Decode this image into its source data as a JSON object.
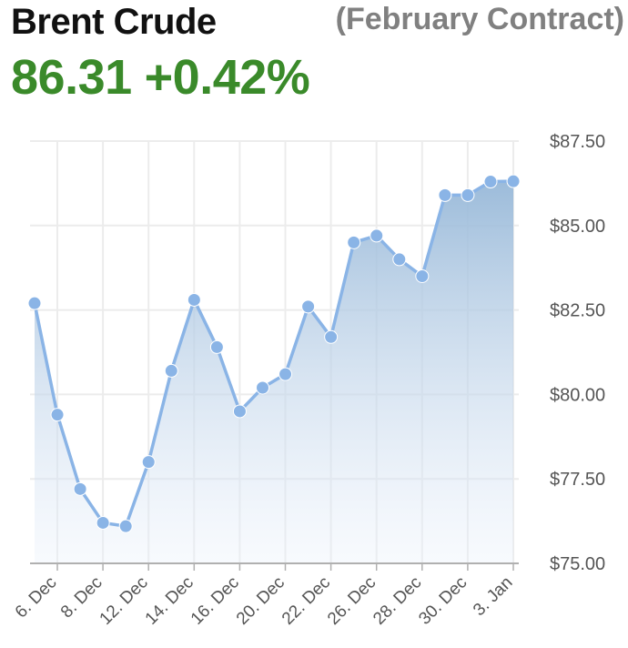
{
  "header": {
    "title": "Brent Crude",
    "subtitle": "(February Contract)",
    "price": "86.31",
    "change": "+0.42%"
  },
  "colors": {
    "line": "#8ab4e6",
    "area_top": "#9dbedb",
    "grid": "#ececec",
    "price": "#3a8a2a"
  },
  "chart_data": {
    "type": "area",
    "title": "",
    "xlabel": "",
    "ylabel": "",
    "ylim": [
      75,
      87.5
    ],
    "yticks": [
      "$75.00",
      "$77.50",
      "$80.00",
      "$82.50",
      "$85.00",
      "$87.50"
    ],
    "ytick_values": [
      75,
      77.5,
      80,
      82.5,
      85,
      87.5
    ],
    "xtick_labels": [
      "6. Dec",
      "8. Dec",
      "12. Dec",
      "14. Dec",
      "16. Dec",
      "20. Dec",
      "22. Dec",
      "26. Dec",
      "28. Dec",
      "30. Dec",
      "3. Jan"
    ],
    "x": [
      "5. Dec",
      "6. Dec",
      "7. Dec",
      "8. Dec",
      "11. Dec",
      "12. Dec",
      "13. Dec",
      "14. Dec",
      "15. Dec",
      "16. Dec",
      "19. Dec",
      "20. Dec",
      "21. Dec",
      "22. Dec",
      "23. Dec",
      "26. Dec",
      "27. Dec",
      "28. Dec",
      "29. Dec",
      "30. Dec",
      "2. Jan",
      "3. Jan"
    ],
    "series": [
      {
        "values": [
          82.7,
          79.4,
          77.2,
          76.2,
          76.1,
          78.0,
          80.7,
          82.8,
          81.4,
          79.5,
          80.2,
          80.6,
          82.6,
          81.7,
          84.5,
          84.7,
          84.0,
          83.5,
          85.9,
          85.9,
          86.3,
          86.31
        ]
      }
    ],
    "grid": true,
    "y_axis_position": "right"
  }
}
